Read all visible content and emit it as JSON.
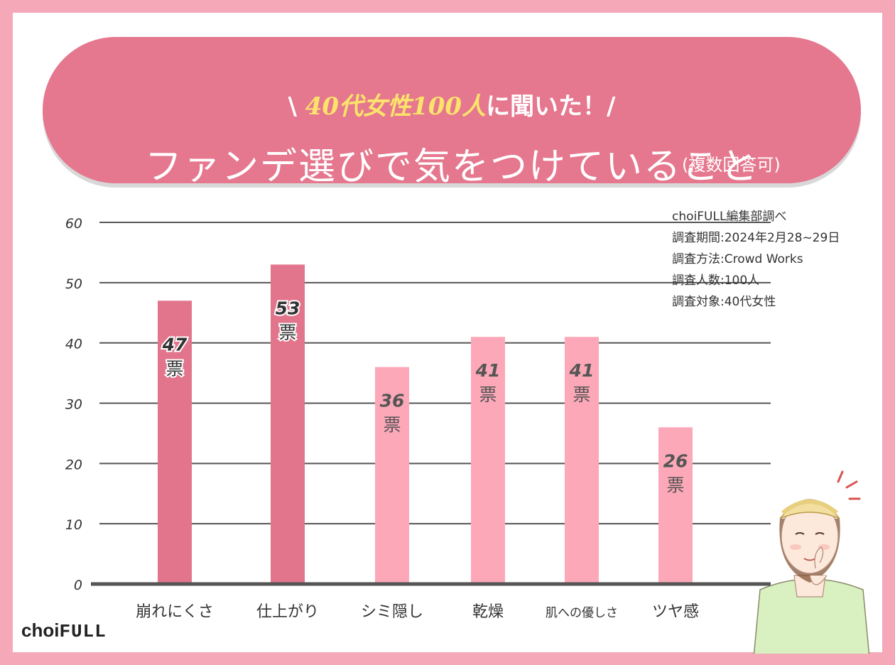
{
  "banner": {
    "sub_prefix": "\\ ",
    "sub_highlight": "40代女性100人",
    "sub_suffix": "に聞いた！/",
    "title": "ファンデ選びで気をつけていること",
    "note": "(複数回答可)"
  },
  "meta": {
    "lines": [
      "choiFULL編集部調べ",
      "調査期間:2024年2月28~29日",
      "調査方法:Crowd Works",
      "調査人数:100人",
      "調査対象:40代女性"
    ]
  },
  "logo": {
    "choi": "choi",
    "full": "FULL"
  },
  "colors": {
    "dark_bar": "#e2748b",
    "light_bar": "#fda8b8",
    "banner": "#e5778e"
  },
  "chart_data": {
    "type": "bar",
    "categories": [
      "崩れにくさ",
      "仕上がり",
      "シミ隠し",
      "乾燥",
      "肌への優しさ",
      "ツヤ感"
    ],
    "values": [
      47,
      53,
      36,
      41,
      41,
      26
    ],
    "value_unit": "票",
    "highlighted": [
      true,
      true,
      false,
      false,
      false,
      false
    ],
    "yticks": [
      0,
      10,
      20,
      30,
      40,
      50,
      60
    ],
    "ylim": [
      0,
      60
    ],
    "title": "ファンデ選びで気をつけていること",
    "xlabel": "",
    "ylabel": "",
    "grid": true
  }
}
